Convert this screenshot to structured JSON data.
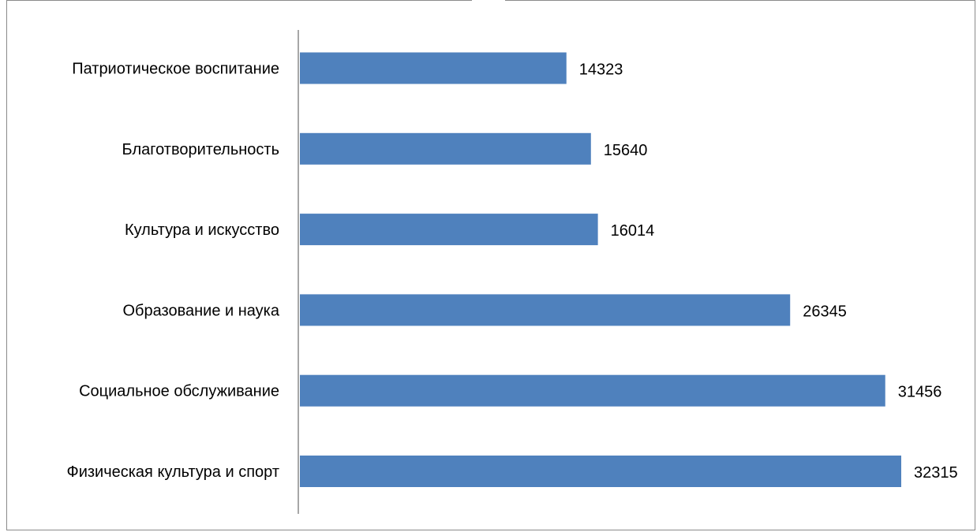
{
  "chart_data": {
    "type": "bar",
    "orientation": "horizontal",
    "categories": [
      "Патриотическое воспитание",
      "Благотворительность",
      "Культура и искусство",
      "Образование и наука",
      "Социальное обслуживание",
      "Физическая культура и спорт"
    ],
    "values": [
      14323,
      15640,
      16014,
      26345,
      31456,
      32315
    ],
    "title": "",
    "xlabel": "",
    "ylabel": "",
    "xlim": [
      0,
      32315
    ],
    "grid": false,
    "legend": "none",
    "data_labels": true,
    "colors": {
      "bar": "#4f81bd",
      "axis": "#8a8a8a",
      "text": "#000000"
    }
  }
}
